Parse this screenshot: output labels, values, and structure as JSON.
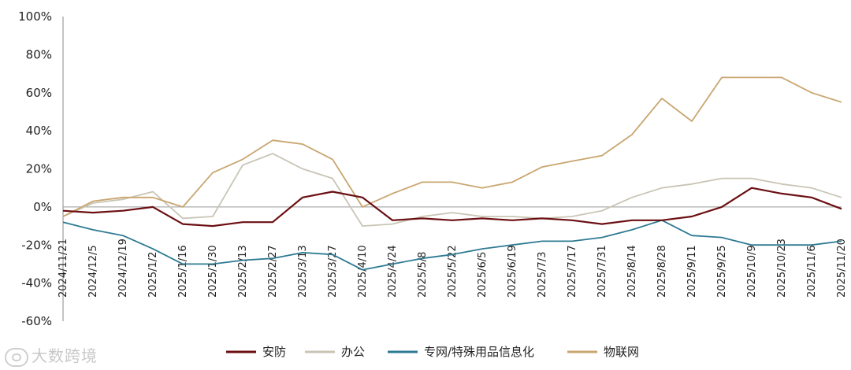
{
  "chart_data": {
    "type": "line",
    "ylim": [
      -0.6,
      1.0
    ],
    "y_ticks": [
      "100%",
      "80%",
      "60%",
      "40%",
      "20%",
      "0%",
      "-20%",
      "-40%",
      "-60%"
    ],
    "y_tick_values": [
      1.0,
      0.8,
      0.6,
      0.4,
      0.2,
      0.0,
      -0.2,
      -0.4,
      -0.6
    ],
    "x_ticks": [
      "2024/11/21",
      "2024/12/5",
      "2024/12/19",
      "2025/1/2",
      "2025/1/16",
      "2025/1/30",
      "2025/2/13",
      "2025/2/27",
      "2025/3/13",
      "2025/3/27",
      "2025/4/10",
      "2025/4/24",
      "2025/5/8",
      "2025/5/22",
      "2025/6/5",
      "2025/6/19",
      "2025/7/3",
      "2025/7/17",
      "2025/7/31",
      "2025/8/14",
      "2025/8/28",
      "2025/9/11",
      "2025/9/25",
      "2025/10/9",
      "2025/10/23",
      "2025/11/6",
      "2025/11/20"
    ],
    "legend_position": "bottom",
    "grid": false,
    "series": [
      {
        "name": "安防",
        "color": "#6b0f12",
        "values": [
          -0.02,
          -0.03,
          -0.02,
          0.0,
          -0.09,
          -0.1,
          -0.08,
          -0.08,
          0.05,
          0.08,
          0.05,
          -0.07,
          -0.06,
          -0.07,
          -0.06,
          -0.07,
          -0.06,
          -0.07,
          -0.09,
          -0.07,
          -0.07,
          -0.05,
          0.0,
          0.1,
          0.07,
          0.05,
          -0.01
        ]
      },
      {
        "name": "办公",
        "color": "#c9c5b5",
        "values": [
          -0.05,
          0.02,
          0.04,
          0.08,
          -0.06,
          -0.05,
          0.22,
          0.28,
          0.2,
          0.15,
          -0.1,
          -0.09,
          -0.05,
          -0.03,
          -0.05,
          -0.05,
          -0.06,
          -0.05,
          -0.02,
          0.05,
          0.1,
          0.12,
          0.15,
          0.15,
          0.12,
          0.1,
          0.05
        ]
      },
      {
        "name": "专网/特殊用品信息化",
        "color": "#2e7a92",
        "values": [
          -0.08,
          -0.12,
          -0.15,
          -0.22,
          -0.3,
          -0.3,
          -0.28,
          -0.27,
          -0.24,
          -0.25,
          -0.33,
          -0.3,
          -0.27,
          -0.25,
          -0.22,
          -0.2,
          -0.18,
          -0.18,
          -0.16,
          -0.12,
          -0.07,
          -0.15,
          -0.16,
          -0.2,
          -0.2,
          -0.2,
          -0.18
        ]
      },
      {
        "name": "物联网",
        "color": "#c9a670",
        "values": [
          -0.05,
          0.03,
          0.05,
          0.05,
          0.0,
          0.18,
          0.25,
          0.35,
          0.33,
          0.25,
          0.0,
          0.07,
          0.13,
          0.13,
          0.1,
          0.13,
          0.21,
          0.24,
          0.27,
          0.38,
          0.57,
          0.45,
          0.68,
          0.68,
          0.68,
          0.6,
          0.55
        ]
      }
    ]
  },
  "watermark": "大数跨境"
}
